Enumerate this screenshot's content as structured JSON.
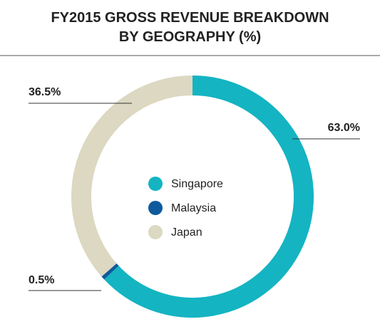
{
  "chart_data": {
    "type": "donut",
    "title": "FY2015 GROSS REVENUE BREAKDOWN BY GEOGRAPHY (%)",
    "categories": [
      "Singapore",
      "Malaysia",
      "Japan"
    ],
    "values": [
      63.0,
      0.5,
      36.5
    ],
    "value_labels": [
      "63.0%",
      "0.5%",
      "36.5%"
    ],
    "colors": [
      "#14b4c2",
      "#0f5a9c",
      "#dcd8c1"
    ],
    "legend": "center"
  }
}
